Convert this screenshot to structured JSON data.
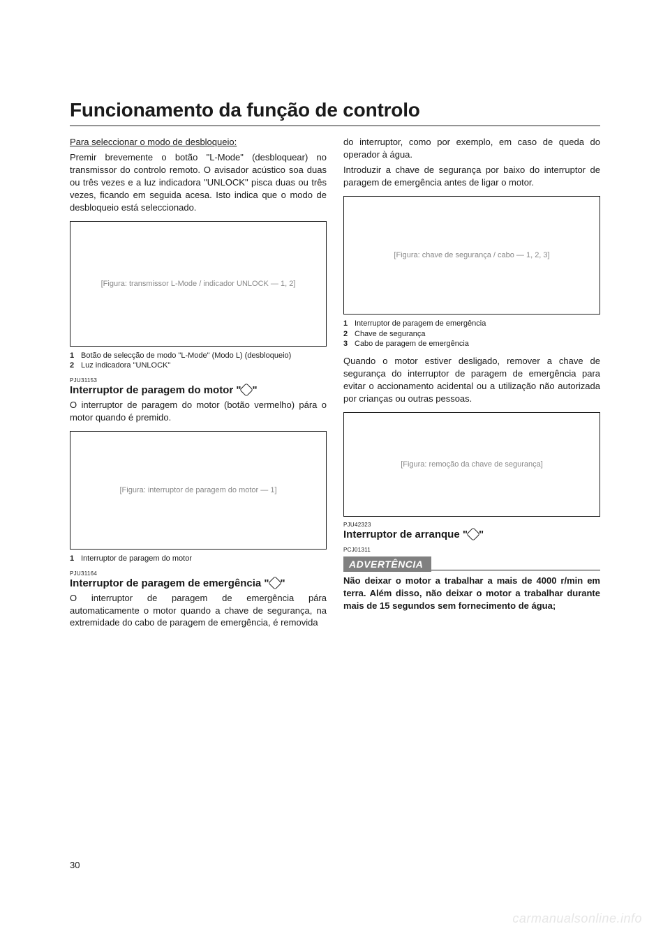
{
  "page": {
    "title": "Funcionamento da função de controlo",
    "number": "30",
    "watermark": "carmanualsonline.info"
  },
  "colors": {
    "text": "#1a1a1a",
    "background": "#ffffff",
    "warn_bg": "#808080",
    "warn_text": "#ffffff",
    "placeholder": "#888888",
    "watermark": "#e6e6e6"
  },
  "left": {
    "unlock_heading": "Para seleccionar o modo de desbloqueio:",
    "unlock_body": "Premir brevemente o botão \"L-Mode\" (desbloquear) no transmissor do controlo remoto. O avisador acústico soa duas ou três vezes e a luz indicadora \"UNLOCK\" pisca duas ou três vezes, ficando em seguida acesa. Isto indica que o modo de desbloqueio está seleccionado.",
    "fig1_placeholder": "[Figura: transmissor L-Mode / indicador UNLOCK — 1, 2]",
    "fig1_captions": [
      {
        "n": "1",
        "t": "Botão de selecção de modo \"L-Mode\" (Modo L) (desbloqueio)"
      },
      {
        "n": "2",
        "t": "Luz indicadora \"UNLOCK\""
      }
    ],
    "code1": "PJU31153",
    "sub1_a": "Interruptor de paragem do motor \"",
    "sub1_b": "\"",
    "sub1_body": "O interruptor de paragem do motor (botão vermelho) pára o motor quando é premido.",
    "fig2_placeholder": "[Figura: interruptor de paragem do motor — 1]",
    "fig2_captions": [
      {
        "n": "1",
        "t": "Interruptor de paragem do motor"
      }
    ],
    "code2": "PJU31164",
    "sub2_a": "Interruptor de paragem de emergência \"",
    "sub2_b": "\"",
    "sub2_body": "O interruptor de paragem de emergência pára automaticamente o motor quando a chave de segurança, na extremidade do cabo de paragem de emergência, é removida"
  },
  "right": {
    "top1": "do interruptor, como por exemplo, em caso de queda do operador à água.",
    "top2": "Introduzir a chave de segurança por baixo do interruptor de paragem de emergência antes de ligar o motor.",
    "fig3_placeholder": "[Figura: chave de segurança / cabo — 1, 2, 3]",
    "fig3_captions": [
      {
        "n": "1",
        "t": "Interruptor de paragem de emergência"
      },
      {
        "n": "2",
        "t": "Chave de segurança"
      },
      {
        "n": "3",
        "t": "Cabo de paragem de emergência"
      }
    ],
    "mid": "Quando o motor estiver desligado, remover a chave de segurança do interruptor de paragem de emergência para evitar o accionamento acidental ou a utilização não autorizada por crianças ou outras pessoas.",
    "fig4_placeholder": "[Figura: remoção da chave de segurança]",
    "code3": "PJU42323",
    "sub3_a": "Interruptor de arranque \"",
    "sub3_b": "\"",
    "code4": "PCJ01311",
    "warn_label": "ADVERTÊNCIA",
    "warn_body": "Não deixar o motor a trabalhar a mais de 4000 r/min em terra. Além disso, não deixar o motor a trabalhar durante mais de 15 segundos sem fornecimento de água;"
  }
}
